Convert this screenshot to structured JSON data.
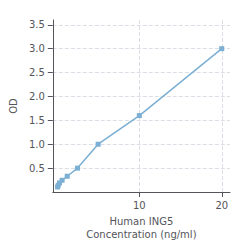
{
  "chart_data": {
    "type": "line",
    "x": [
      0.078,
      0.156,
      0.312,
      0.625,
      1.25,
      2.5,
      5.0,
      10.0,
      20.0
    ],
    "values": [
      0.105,
      0.14,
      0.19,
      0.245,
      0.33,
      0.5,
      1.0,
      1.6,
      3.0
    ],
    "color": "#7BAFD4",
    "marker": "square",
    "xlabel": "Human ING5\nConcentration (ng/ml)",
    "ylabel": "OD",
    "xlim": [
      -0.5,
      21
    ],
    "ylim": [
      0,
      3.6
    ],
    "xticks": [
      10,
      20
    ],
    "yticks": [
      0.5,
      {
        "value": 1.0,
        "label": "1.0"
      },
      1.5,
      {
        "value": 2.0,
        "label": "2.0"
      },
      2.5,
      {
        "value": 3.0,
        "label": "3.0"
      },
      3.5
    ],
    "grid": true
  }
}
